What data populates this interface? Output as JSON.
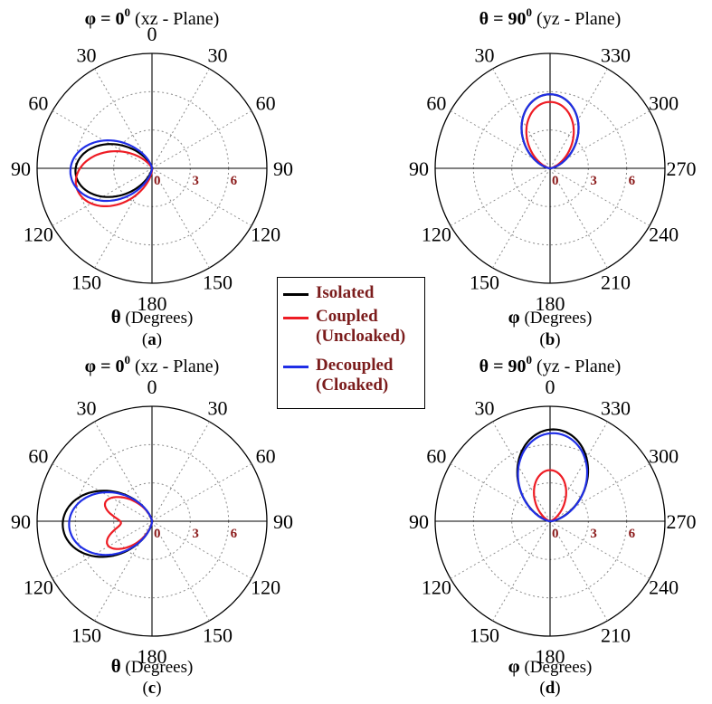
{
  "colors": {
    "isolated": "#000000",
    "coupled": "#ee1c24",
    "decoupled": "#1f2ee6",
    "radial_label": "#8b1a1a",
    "grid": "#888888"
  },
  "legend": {
    "items": [
      {
        "label": "Isolated",
        "color": "#000000"
      },
      {
        "label": "Coupled\n(Uncloaked)",
        "color": "#ee1c24"
      },
      {
        "label": "Decoupled\n(Cloaked)",
        "color": "#1f2ee6"
      }
    ]
  },
  "chart_data": [
    {
      "type": "polar",
      "panel": "(a)",
      "title_symbol": "φ",
      "title_rest": " = 0",
      "title_sup": "0",
      "title_plane": " (xz - Plane)",
      "axis_symbol": "θ",
      "axis_label": " (Degrees)",
      "angle_labels": {
        "0": "0",
        "30": "30",
        "60": "60",
        "90": "90",
        "120": "120",
        "150": "150",
        "180": "180",
        "210": "150",
        "240": "120",
        "270": "90",
        "300": "60",
        "330": "30"
      },
      "radial_ticks": [
        "0",
        "3",
        "6"
      ],
      "series": [
        {
          "name": "Isolated",
          "key": "isolated",
          "center_deg": 93,
          "peak": 6.0,
          "width": 2.6
        },
        {
          "name": "Coupled (Uncloaked)",
          "key": "coupled",
          "center_deg": 104,
          "peak": 6.1,
          "width": 2.6
        },
        {
          "name": "Decoupled (Cloaked)",
          "key": "decoupled",
          "center_deg": 93,
          "peak": 6.4,
          "width": 2.2
        }
      ]
    },
    {
      "type": "polar",
      "panel": "(b)",
      "title_symbol": "θ",
      "title_rest": " = 90",
      "title_sup": "0",
      "title_plane": " (yz - Plane)",
      "axis_symbol": "φ",
      "axis_label": " (Degrees)",
      "angle_labels": {
        "0": "",
        "30": "330",
        "60": "300",
        "90": "270",
        "120": "240",
        "150": "210",
        "180": "180",
        "210": "150",
        "240": "120",
        "270": "90",
        "300": "60",
        "330": "30"
      },
      "radial_ticks": [
        "0",
        "3",
        "6"
      ],
      "series": [
        {
          "name": "Isolated",
          "key": "isolated",
          "center_deg": 0,
          "peak": 5.8,
          "width": 2.0
        },
        {
          "name": "Coupled (Uncloaked)",
          "key": "coupled",
          "center_deg": 0,
          "peak": 5.2,
          "width": 2.4
        },
        {
          "name": "Decoupled (Cloaked)",
          "key": "decoupled",
          "center_deg": 0,
          "peak": 5.8,
          "width": 2.0
        }
      ]
    },
    {
      "type": "polar",
      "panel": "(c)",
      "title_symbol": "φ",
      "title_rest": " = 0",
      "title_sup": "0",
      "title_plane": " (xz - Plane)",
      "axis_symbol": "θ",
      "axis_label": " (Degrees)",
      "angle_labels": {
        "0": "0",
        "30": "30",
        "60": "60",
        "90": "90",
        "120": "120",
        "150": "150",
        "180": "180",
        "210": "150",
        "240": "120",
        "270": "90",
        "300": "60",
        "330": "30"
      },
      "radial_ticks": [
        "0",
        "3",
        "6"
      ],
      "series": [
        {
          "name": "Isolated",
          "key": "isolated",
          "center_deg": 93,
          "peak": 7.0,
          "width": 2.2
        },
        {
          "name": "Coupled (Uncloaked)",
          "key": "coupled",
          "center_deg": 93,
          "peak": 5.4,
          "width": 2.0,
          "notch_deg": 93,
          "notch_depth": 0.55,
          "notch_width": 14
        },
        {
          "name": "Decoupled (Cloaked)",
          "key": "decoupled",
          "center_deg": 93,
          "peak": 6.5,
          "width": 2.1
        }
      ]
    },
    {
      "type": "polar",
      "panel": "(d)",
      "title_symbol": "θ",
      "title_rest": " = 90",
      "title_sup": "0",
      "title_plane": " (yz - Plane)",
      "axis_symbol": "φ",
      "axis_label": " (Degrees)",
      "angle_labels": {
        "0": "0",
        "30": "330",
        "60": "300",
        "90": "270",
        "120": "240",
        "150": "210",
        "180": "180",
        "210": "150",
        "240": "120",
        "270": "90",
        "300": "60",
        "330": "30"
      },
      "radial_ticks": [
        "0",
        "3",
        "6"
      ],
      "series": [
        {
          "name": "Isolated",
          "key": "isolated",
          "center_deg": 357,
          "peak": 7.2,
          "width": 2.0
        },
        {
          "name": "Coupled (Uncloaked)",
          "key": "coupled",
          "center_deg": 0,
          "peak": 4.0,
          "width": 3.2
        },
        {
          "name": "Decoupled (Cloaked)",
          "key": "decoupled",
          "center_deg": 357,
          "peak": 6.9,
          "width": 1.9
        }
      ]
    }
  ]
}
